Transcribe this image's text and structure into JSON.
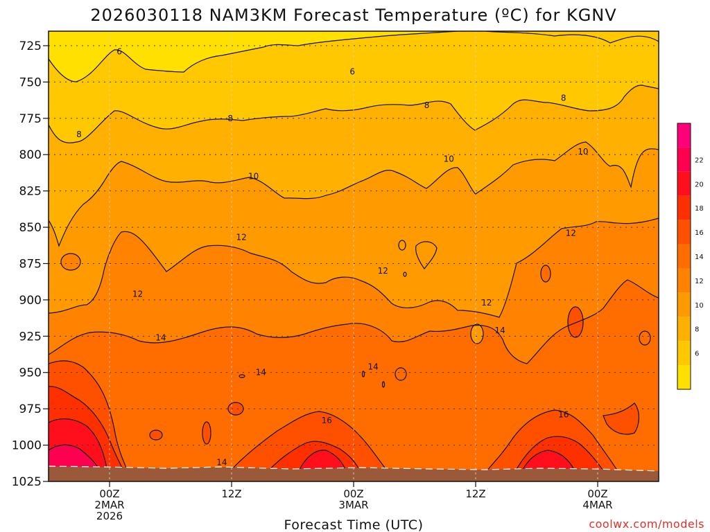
{
  "title": "2026030118 NAM3KM Forecast Temperature (ºC) for KGNV",
  "credit": "coolwx.com/models",
  "colors": {
    "ground": "#9a5a3a",
    "contour_line": "#111111",
    "grid": "#333333"
  },
  "chart_data": {
    "type": "filled-contour",
    "title": "2026030118 NAM3KM Forecast Temperature (ºC) for KGNV",
    "xlabel": "Forecast Time (UTC)",
    "ylabel": "",
    "y_axis": {
      "scale": "pressure (hPa)",
      "range": [
        1025,
        715
      ],
      "ticks": [
        "725",
        "750",
        "775",
        "800",
        "825",
        "850",
        "875",
        "900",
        "925",
        "950",
        "975",
        "1000",
        "1025"
      ]
    },
    "x_axis": {
      "range_hours": [
        -5,
        45
      ],
      "ticks": [
        {
          "hour": 0,
          "lines": [
            "00Z",
            "2MAR",
            "2026"
          ]
        },
        {
          "hour": 10,
          "lines": [
            "12Z"
          ]
        },
        {
          "hour": 20,
          "lines": [
            "00Z",
            "3MAR"
          ]
        },
        {
          "hour": 30,
          "lines": [
            "12Z"
          ]
        },
        {
          "hour": 40,
          "lines": [
            "00Z",
            "4MAR"
          ]
        }
      ]
    },
    "grid": true,
    "colorbar": {
      "placement": "right",
      "levels": [
        4,
        6,
        8,
        10,
        12,
        14,
        16,
        18,
        20,
        22,
        24
      ],
      "labels": [
        "6",
        "8",
        "10",
        "12",
        "14",
        "16",
        "18",
        "20",
        "22"
      ],
      "colors": [
        "#ffe000",
        "#ffc800",
        "#ffb000",
        "#ff9a00",
        "#ff8200",
        "#ff6c00",
        "#ff5000",
        "#ff3000",
        "#ff0f1c",
        "#ff0050",
        "#ff0078"
      ]
    },
    "contour_labels": [
      {
        "text": "6",
        "hour": 0.8,
        "p": 729
      },
      {
        "text": "6",
        "hour": 19.9,
        "p": 743
      },
      {
        "text": "8",
        "hour": -2.5,
        "p": 786
      },
      {
        "text": "8",
        "hour": 9.9,
        "p": 775
      },
      {
        "text": "8",
        "hour": 26.0,
        "p": 766
      },
      {
        "text": "8",
        "hour": 37.2,
        "p": 761
      },
      {
        "text": "10",
        "hour": 11.8,
        "p": 815
      },
      {
        "text": "10",
        "hour": 27.8,
        "p": 803
      },
      {
        "text": "10",
        "hour": 38.8,
        "p": 798
      },
      {
        "text": "12",
        "hour": 10.8,
        "p": 857
      },
      {
        "text": "12",
        "hour": 2.3,
        "p": 896
      },
      {
        "text": "12",
        "hour": 22.4,
        "p": 880
      },
      {
        "text": "12",
        "hour": 37.8,
        "p": 854
      },
      {
        "text": "12",
        "hour": 30.9,
        "p": 902
      },
      {
        "text": "14",
        "hour": 4.2,
        "p": 926
      },
      {
        "text": "14",
        "hour": 12.4,
        "p": 950
      },
      {
        "text": "14",
        "hour": 21.6,
        "p": 946
      },
      {
        "text": "14",
        "hour": 32.0,
        "p": 921
      },
      {
        "text": "14",
        "hour": 9.2,
        "p": 1012
      },
      {
        "text": "16",
        "hour": 17.8,
        "p": 983
      },
      {
        "text": "16",
        "hour": 37.2,
        "p": 979
      }
    ]
  }
}
